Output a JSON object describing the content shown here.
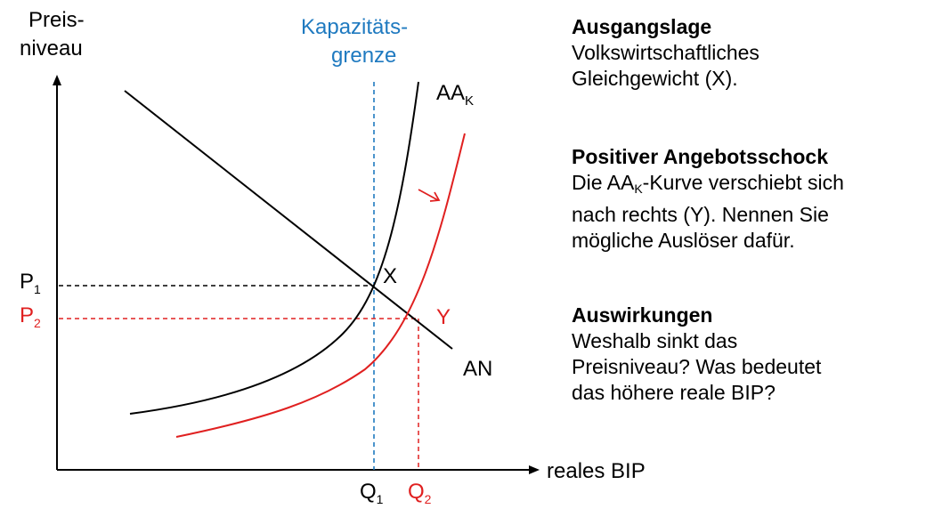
{
  "axes": {
    "y_label_line1": "Preis-",
    "y_label_line2": "niveau",
    "x_label": "reales BIP"
  },
  "capacity": {
    "line1": "Kapazitäts-",
    "line2": "grenze",
    "color": "#1f7ac0"
  },
  "curves": {
    "aa_main": "AA",
    "aa_sub": "K",
    "an": "AN",
    "shift_color": "#e02020"
  },
  "points": {
    "x": "X",
    "y": "Y",
    "p1_main": "P",
    "p1_sub": "1",
    "p2_main": "P",
    "p2_sub": "2",
    "q1_main": "Q",
    "q1_sub": "1",
    "q2_main": "Q",
    "q2_sub": "2"
  },
  "text": {
    "s1_heading": "Ausgangslage",
    "s1_line1": "Volkswirtschaftliches",
    "s1_line2": "Gleichgewicht (X).",
    "s2_heading": "Positiver Angebotsschock",
    "s2_line1_a": "Die AA",
    "s2_line1_sub": "K",
    "s2_line1_b": "-Kurve verschiebt sich",
    "s2_line2": "nach rechts (Y). Nennen Sie",
    "s2_line3": "mögliche Auslöser dafür.",
    "s3_heading": "Auswirkungen",
    "s3_line1": "Weshalb sinkt das",
    "s3_line2": "Preisniveau? Was bedeutet",
    "s3_line3": "das höhere reale BIP?"
  }
}
